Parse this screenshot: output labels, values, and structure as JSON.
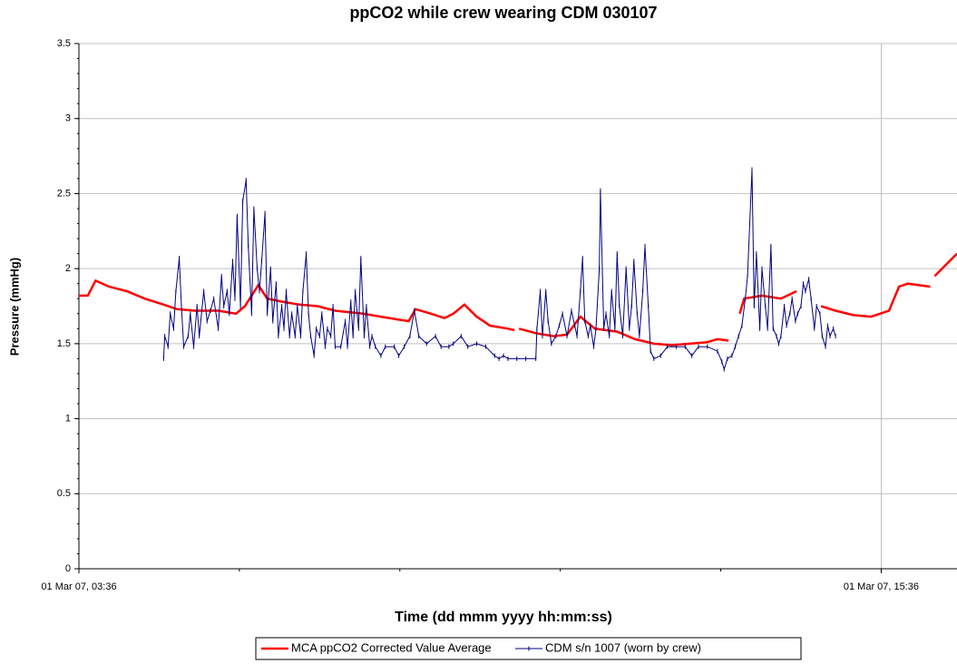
{
  "chart_data": {
    "type": "line",
    "title": "ppCO2 while crew wearing CDM 030107",
    "x_label": "Time (dd mmm yyyy hh:mm:ss)",
    "y_label": "Pressure (mmHg)",
    "xlim": [
      "01 Mar 07, 03:36",
      "01 Mar 07, 16:44"
    ],
    "xticks": [
      "01 Mar 07, 03:36",
      "01 Mar 07, 15:36"
    ],
    "ylim": [
      0,
      3.5
    ],
    "yticks": [
      0,
      0.5,
      1,
      1.5,
      2,
      2.5,
      3,
      3.5
    ],
    "grid": true,
    "legend": "bottom",
    "series": [
      {
        "name": "MCA ppCO2 Corrected Value Average",
        "color": "#ff0000",
        "markers": false,
        "x": [
          "01 Mar 07, 03:36",
          "01 Mar 07, 03:44",
          "01 Mar 07, 03:51",
          "01 Mar 07, 04:03",
          "01 Mar 07, 04:19",
          "01 Mar 07, 04:35",
          "01 Mar 07, 04:52",
          "01 Mar 07, 05:04",
          "01 Mar 07, 05:20",
          "01 Mar 07, 05:41",
          "01 Mar 07, 05:57",
          "01 Mar 07, 06:05",
          "01 Mar 07, 06:17",
          "01 Mar 07, 06:25",
          "01 Mar 07, 06:38",
          "01 Mar 07, 06:54",
          "01 Mar 07, 07:10",
          "01 Mar 07, 07:26",
          "01 Mar 07, 07:51",
          "01 Mar 07, 08:07",
          "01 Mar 07, 08:23",
          "01 Mar 07, 08:32",
          "01 Mar 07, 08:38",
          "01 Mar 07, 08:52",
          "01 Mar 07, 09:04",
          "01 Mar 07, 09:12",
          "01 Mar 07, 09:22",
          "01 Mar 07, 09:33",
          "01 Mar 07, 09:45",
          "01 Mar 07, 10:01",
          "01 Mar 07, 10:07",
          null,
          "01 Mar 07, 10:11",
          "01 Mar 07, 10:26",
          "01 Mar 07, 10:42",
          "01 Mar 07, 10:54",
          "01 Mar 07, 11:06",
          "01 Mar 07, 11:19",
          "01 Mar 07, 11:39",
          "01 Mar 07, 11:55",
          "01 Mar 07, 12:12",
          "01 Mar 07, 12:28",
          "01 Mar 07, 12:44",
          "01 Mar 07, 13:00",
          "01 Mar 07, 13:09",
          "01 Mar 07, 13:19",
          null,
          "01 Mar 07, 13:29",
          "01 Mar 07, 13:33",
          "01 Mar 07, 13:49",
          "01 Mar 07, 14:06",
          "01 Mar 07, 14:20",
          null,
          "01 Mar 07, 14:42",
          "01 Mar 07, 14:55",
          "01 Mar 07, 15:11",
          "01 Mar 07, 15:27",
          "01 Mar 07, 15:43",
          "01 Mar 07, 15:52",
          "01 Mar 07, 16:00",
          "01 Mar 07, 16:20",
          null,
          "01 Mar 07, 16:24",
          "01 Mar 07, 16:44"
        ],
        "values": [
          1.82,
          1.82,
          1.92,
          1.88,
          1.85,
          1.8,
          1.76,
          1.73,
          1.72,
          1.72,
          1.7,
          1.75,
          1.89,
          1.8,
          1.78,
          1.76,
          1.75,
          1.72,
          1.7,
          1.68,
          1.66,
          1.65,
          1.73,
          1.7,
          1.67,
          1.7,
          1.76,
          1.68,
          1.62,
          1.6,
          1.59,
          null,
          1.6,
          1.57,
          1.55,
          1.56,
          1.68,
          1.6,
          1.58,
          1.53,
          1.5,
          1.49,
          1.5,
          1.51,
          1.53,
          1.52,
          null,
          1.7,
          1.8,
          1.82,
          1.8,
          1.85,
          null,
          1.75,
          1.72,
          1.69,
          1.68,
          1.72,
          1.88,
          1.9,
          1.88,
          null,
          1.95,
          2.1
        ]
      },
      {
        "name": "CDM s/n 1007 (worn by crew)",
        "color": "#000080",
        "markers": true,
        "x": [
          "01 Mar 07, 04:52",
          "01 Mar 07, 04:53",
          "01 Mar 07, 04:56",
          "01 Mar 07, 04:58",
          "01 Mar 07, 05:01",
          "01 Mar 07, 05:03",
          "01 Mar 07, 05:06",
          "01 Mar 07, 05:08",
          "01 Mar 07, 05:10",
          "01 Mar 07, 05:14",
          "01 Mar 07, 05:16",
          "01 Mar 07, 05:19",
          "01 Mar 07, 05:22",
          "01 Mar 07, 05:24",
          "01 Mar 07, 05:28",
          "01 Mar 07, 05:31",
          "01 Mar 07, 05:34",
          "01 Mar 07, 05:37",
          "01 Mar 07, 05:41",
          "01 Mar 07, 05:44",
          "01 Mar 07, 05:46",
          "01 Mar 07, 05:49",
          "01 Mar 07, 05:51",
          "01 Mar 07, 05:54",
          "01 Mar 07, 05:56",
          "01 Mar 07, 05:58",
          "01 Mar 07, 06:01",
          "01 Mar 07, 06:03",
          "01 Mar 07, 06:06",
          "01 Mar 07, 06:08",
          "01 Mar 07, 06:11",
          "01 Mar 07, 06:13",
          "01 Mar 07, 06:16",
          "01 Mar 07, 06:18",
          "01 Mar 07, 06:20",
          "01 Mar 07, 06:23",
          "01 Mar 07, 06:25",
          "01 Mar 07, 06:28",
          "01 Mar 07, 06:30",
          "01 Mar 07, 06:33",
          "01 Mar 07, 06:35",
          "01 Mar 07, 06:38",
          "01 Mar 07, 06:40",
          "01 Mar 07, 06:42",
          "01 Mar 07, 06:45",
          "01 Mar 07, 06:47",
          "01 Mar 07, 06:50",
          "01 Mar 07, 06:52",
          "01 Mar 07, 06:55",
          "01 Mar 07, 06:57",
          "01 Mar 07, 07:00",
          "01 Mar 07, 07:02",
          "01 Mar 07, 07:04",
          "01 Mar 07, 07:07",
          "01 Mar 07, 07:09",
          "01 Mar 07, 07:12",
          "01 Mar 07, 07:14",
          "01 Mar 07, 07:17",
          "01 Mar 07, 07:19",
          "01 Mar 07, 07:22",
          "01 Mar 07, 07:24",
          "01 Mar 07, 07:26",
          "01 Mar 07, 07:31",
          "01 Mar 07, 07:35",
          "01 Mar 07, 07:37",
          "01 Mar 07, 07:40",
          "01 Mar 07, 07:42",
          "01 Mar 07, 07:44",
          "01 Mar 07, 07:47",
          "01 Mar 07, 07:49",
          "01 Mar 07, 07:52",
          "01 Mar 07, 07:54",
          "01 Mar 07, 07:57",
          "01 Mar 07, 07:59",
          "01 Mar 07, 08:02",
          "01 Mar 07, 08:07",
          "01 Mar 07, 08:11",
          "01 Mar 07, 08:19",
          "01 Mar 07, 08:23",
          "01 Mar 07, 08:28",
          "01 Mar 07, 08:33",
          "01 Mar 07, 08:37",
          "01 Mar 07, 08:41",
          "01 Mar 07, 08:48",
          "01 Mar 07, 08:56",
          "01 Mar 07, 09:01",
          "01 Mar 07, 09:08",
          "01 Mar 07, 09:12",
          "01 Mar 07, 09:19",
          "01 Mar 07, 09:25",
          "01 Mar 07, 09:33",
          "01 Mar 07, 09:41",
          "01 Mar 07, 09:49",
          "01 Mar 07, 09:53",
          "01 Mar 07, 09:57",
          "01 Mar 07, 10:01",
          "01 Mar 07, 10:09",
          "01 Mar 07, 10:17",
          "01 Mar 07, 10:26",
          "01 Mar 07, 10:27",
          "01 Mar 07, 10:30",
          "01 Mar 07, 10:32",
          "01 Mar 07, 10:35",
          "01 Mar 07, 10:37",
          "01 Mar 07, 10:40",
          "01 Mar 07, 10:44",
          "01 Mar 07, 10:47",
          "01 Mar 07, 10:50",
          "01 Mar 07, 10:54",
          "01 Mar 07, 10:58",
          "01 Mar 07, 11:01",
          "01 Mar 07, 11:03",
          "01 Mar 07, 11:06",
          "01 Mar 07, 11:08",
          "01 Mar 07, 11:10",
          "01 Mar 07, 11:13",
          "01 Mar 07, 11:15",
          "01 Mar 07, 11:18",
          "01 Mar 07, 11:20",
          "01 Mar 07, 11:23",
          "01 Mar 07, 11:24",
          "01 Mar 07, 11:27",
          "01 Mar 07, 11:29",
          "01 Mar 07, 11:32",
          "01 Mar 07, 11:34",
          "01 Mar 07, 11:37",
          "01 Mar 07, 11:39",
          "01 Mar 07, 11:41",
          "01 Mar 07, 11:44",
          "01 Mar 07, 11:47",
          "01 Mar 07, 11:50",
          "01 Mar 07, 11:52",
          "01 Mar 07, 11:54",
          "01 Mar 07, 11:57",
          "01 Mar 07, 11:59",
          "01 Mar 07, 12:02",
          "01 Mar 07, 12:04",
          "01 Mar 07, 12:07",
          "01 Mar 07, 12:09",
          "01 Mar 07, 12:12",
          "01 Mar 07, 12:18",
          "01 Mar 07, 12:24",
          "01 Mar 07, 12:32",
          "01 Mar 07, 12:40",
          "01 Mar 07, 12:46",
          "01 Mar 07, 12:52",
          "01 Mar 07, 13:00",
          "01 Mar 07, 13:09",
          "01 Mar 07, 13:13",
          "01 Mar 07, 13:15",
          "01 Mar 07, 13:18",
          "01 Mar 07, 13:22",
          "01 Mar 07, 13:25",
          "01 Mar 07, 13:28",
          "01 Mar 07, 13:31",
          "01 Mar 07, 13:34",
          "01 Mar 07, 13:36",
          "01 Mar 07, 13:38",
          "01 Mar 07, 13:40",
          "01 Mar 07, 13:42",
          "01 Mar 07, 13:44",
          "01 Mar 07, 13:47",
          "01 Mar 07, 13:49",
          "01 Mar 07, 13:52",
          "01 Mar 07, 13:54",
          "01 Mar 07, 13:57",
          "01 Mar 07, 13:59",
          "01 Mar 07, 14:02",
          "01 Mar 07, 14:04",
          "01 Mar 07, 14:06",
          "01 Mar 07, 14:09",
          "01 Mar 07, 14:11",
          "01 Mar 07, 14:14",
          "01 Mar 07, 14:16",
          "01 Mar 07, 14:19",
          "01 Mar 07, 14:21",
          "01 Mar 07, 14:24",
          "01 Mar 07, 14:26",
          "01 Mar 07, 14:28",
          "01 Mar 07, 14:31",
          "01 Mar 07, 14:33",
          "01 Mar 07, 14:36",
          "01 Mar 07, 14:38",
          "01 Mar 07, 14:41",
          "01 Mar 07, 14:43",
          "01 Mar 07, 14:46",
          "01 Mar 07, 14:48",
          "01 Mar 07, 14:50",
          "01 Mar 07, 14:53",
          "01 Mar 07, 14:55"
        ],
        "values": [
          1.4,
          1.55,
          1.48,
          1.7,
          1.6,
          1.85,
          2.07,
          1.75,
          1.48,
          1.55,
          1.7,
          1.48,
          1.75,
          1.55,
          1.85,
          1.65,
          1.72,
          1.8,
          1.6,
          1.95,
          1.75,
          1.85,
          1.7,
          2.05,
          1.8,
          2.35,
          1.75,
          2.45,
          2.59,
          2.15,
          1.7,
          2.4,
          2,
          1.85,
          2.05,
          2.37,
          1.7,
          2,
          1.65,
          1.9,
          1.55,
          1.75,
          1.6,
          1.85,
          1.55,
          1.7,
          1.55,
          1.75,
          1.55,
          1.85,
          2.1,
          1.7,
          1.55,
          1.42,
          1.6,
          1.55,
          1.7,
          1.48,
          1.6,
          1.55,
          1.75,
          1.48,
          1.48,
          1.65,
          1.48,
          1.78,
          1.55,
          1.85,
          1.6,
          2.07,
          1.55,
          1.75,
          1.48,
          1.55,
          1.48,
          1.42,
          1.48,
          1.48,
          1.42,
          1.48,
          1.55,
          1.72,
          1.55,
          1.5,
          1.55,
          1.48,
          1.48,
          1.5,
          1.55,
          1.48,
          1.5,
          1.48,
          1.42,
          1.4,
          1.42,
          1.4,
          1.4,
          1.4,
          1.4,
          1.6,
          1.85,
          1.55,
          1.85,
          1.65,
          1.5,
          1.55,
          1.62,
          1.7,
          1.55,
          1.72,
          1.62,
          1.55,
          1.85,
          2.07,
          1.65,
          1.55,
          1.62,
          1.48,
          1.6,
          2,
          2.52,
          1.6,
          1.7,
          1.55,
          1.85,
          1.6,
          2.1,
          1.75,
          1.55,
          2,
          1.6,
          1.75,
          2.05,
          1.7,
          1.55,
          1.85,
          2.15,
          1.75,
          1.45,
          1.4,
          1.42,
          1.48,
          1.48,
          1.48,
          1.42,
          1.48,
          1.48,
          1.45,
          1.38,
          1.33,
          1.4,
          1.42,
          1.48,
          1.55,
          1.62,
          1.8,
          1.95,
          2.3,
          2.66,
          1.75,
          2.1,
          1.6,
          2,
          1.75,
          1.6,
          2.15,
          1.6,
          1.55,
          1.5,
          1.55,
          1.75,
          1.62,
          1.7,
          1.8,
          1.65,
          1.7,
          1.75,
          1.9,
          1.85,
          1.93,
          1.8,
          1.6,
          1.75,
          1.7,
          1.55,
          1.48,
          1.62,
          1.55,
          1.6,
          1.55
        ]
      }
    ]
  }
}
